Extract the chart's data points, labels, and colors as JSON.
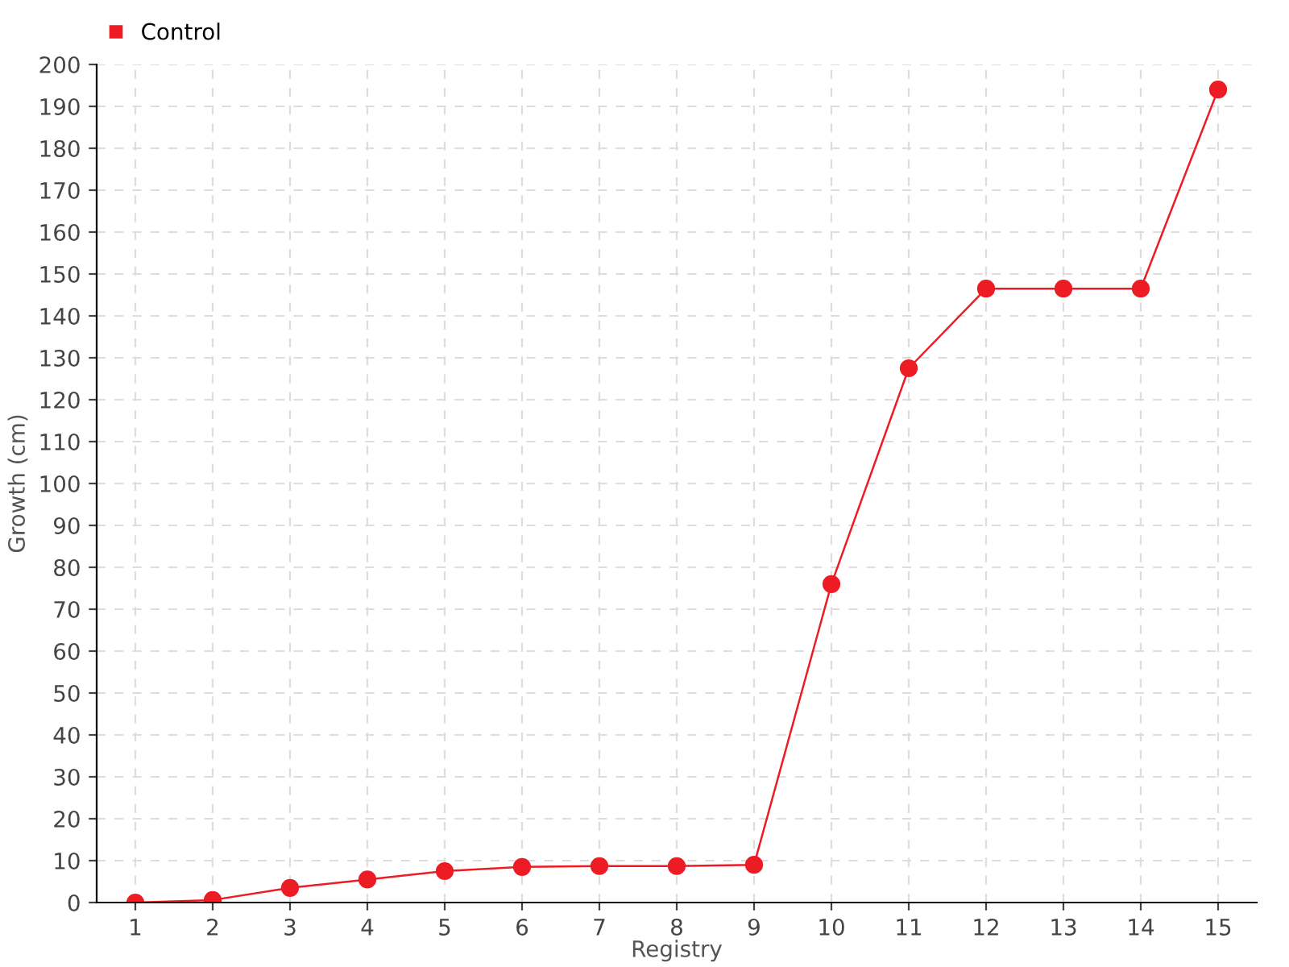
{
  "chart_data": {
    "type": "line",
    "xlabel": "Registry",
    "ylabel": "Growth (cm)",
    "categories": [
      "1",
      "2",
      "3",
      "4",
      "5",
      "6",
      "7",
      "8",
      "9",
      "10",
      "11",
      "12",
      "13",
      "14",
      "15"
    ],
    "series": [
      {
        "name": "Control",
        "color": "#ed1c24",
        "values": [
          0,
          0.6,
          3.5,
          5.5,
          7.5,
          8.5,
          8.7,
          8.7,
          9,
          76,
          127.5,
          146.5,
          146.5,
          146.5,
          194
        ]
      }
    ],
    "ylim": [
      0,
      200
    ],
    "yticks": [
      0,
      10,
      20,
      30,
      40,
      50,
      60,
      70,
      80,
      90,
      100,
      110,
      120,
      130,
      140,
      150,
      160,
      170,
      180,
      190,
      200
    ],
    "grid": true,
    "legend": "top left",
    "marker": "circle",
    "line_style": "solid"
  }
}
